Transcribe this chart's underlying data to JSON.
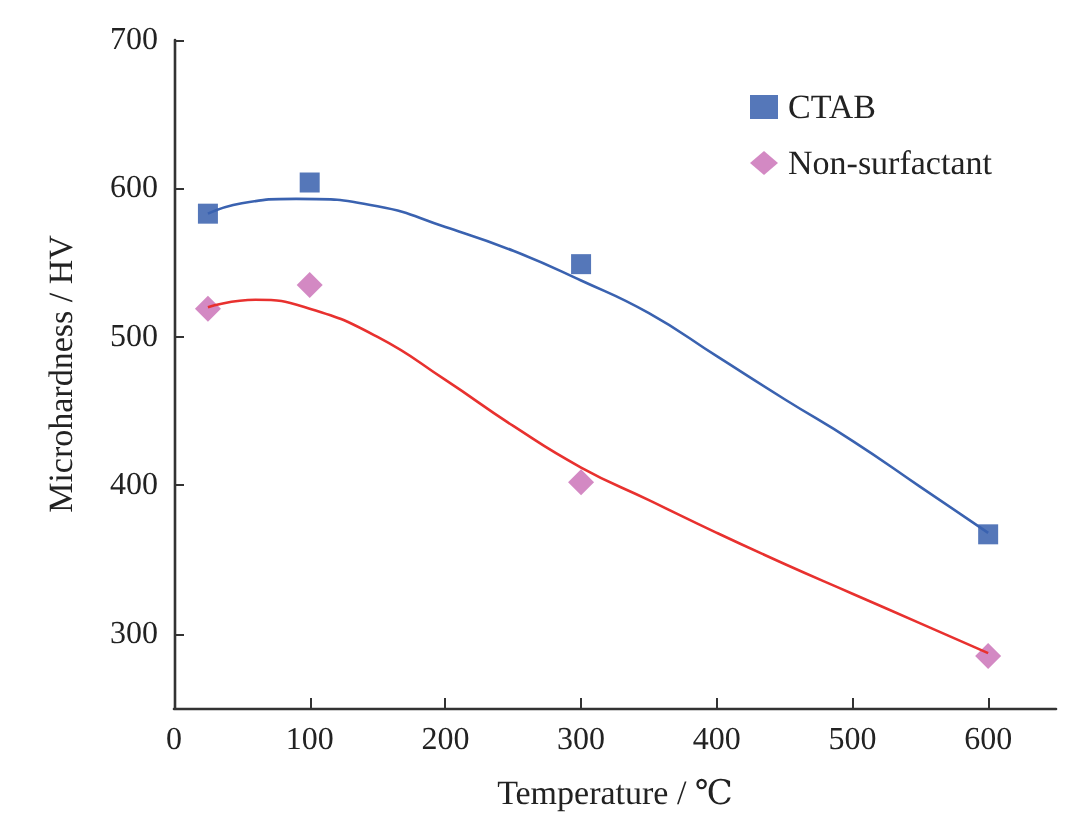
{
  "chart_data": {
    "type": "scatter",
    "xlabel": "Temperature / ℃",
    "ylabel": "Microhardness / HV",
    "xlim": [
      0,
      650
    ],
    "xticks": [
      0,
      100,
      200,
      300,
      400,
      500,
      600
    ],
    "ylim": [
      250,
      700
    ],
    "yticks": [
      300,
      400,
      500,
      600,
      700
    ],
    "grid": false,
    "legend": "top right",
    "series": [
      {
        "name": "CTAB",
        "color": "#2b55a8",
        "marker": "square",
        "x": [
          25,
          100,
          300,
          600
        ],
        "values": [
          583,
          604,
          549,
          367
        ]
      },
      {
        "type": "line",
        "color": "#3a62b0",
        "marker": "none",
        "x": [
          25,
          50,
          90,
          150,
          200,
          250,
          300,
          350,
          400,
          450,
          500,
          550,
          600
        ],
        "values": [
          583,
          590,
          593,
          588,
          574,
          558,
          538,
          516,
          487,
          458,
          430,
          399,
          368
        ]
      },
      {
        "name": "Non-surfactant",
        "color": "#c86cb4",
        "marker": "diamond",
        "x": [
          25,
          100,
          300,
          600
        ],
        "values": [
          519,
          535,
          402,
          285
        ]
      },
      {
        "type": "line",
        "color": "#e8312f",
        "marker": "none",
        "x": [
          25,
          60,
          100,
          150,
          200,
          250,
          300,
          350,
          400,
          450,
          500,
          550,
          600
        ],
        "values": [
          520,
          525,
          519,
          500,
          471,
          440,
          412,
          390,
          368,
          347,
          327,
          307,
          287
        ]
      }
    ]
  }
}
